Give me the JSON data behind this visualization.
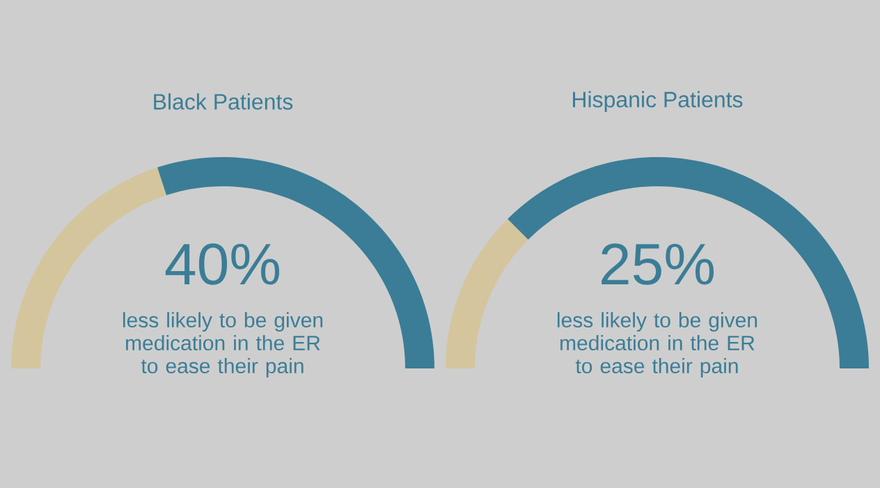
{
  "chart_data": [
    {
      "type": "donut",
      "title": "Black Patients",
      "categories": [
        null,
        null
      ],
      "values": [
        40,
        60
      ],
      "colors": [
        "#d4c59d",
        "#3b7d96"
      ],
      "annotations": [
        "40%",
        "less likely to be given medication in the ER to ease their pain"
      ]
    },
    {
      "type": "donut",
      "title": "Hispanic Patients",
      "categories": [
        null,
        null
      ],
      "values": [
        25,
        75
      ],
      "colors": [
        "#d4c59d",
        "#3b7d96"
      ],
      "annotations": [
        "25%",
        "less likely to be given medication in the ER to ease their pain"
      ]
    }
  ]
}
